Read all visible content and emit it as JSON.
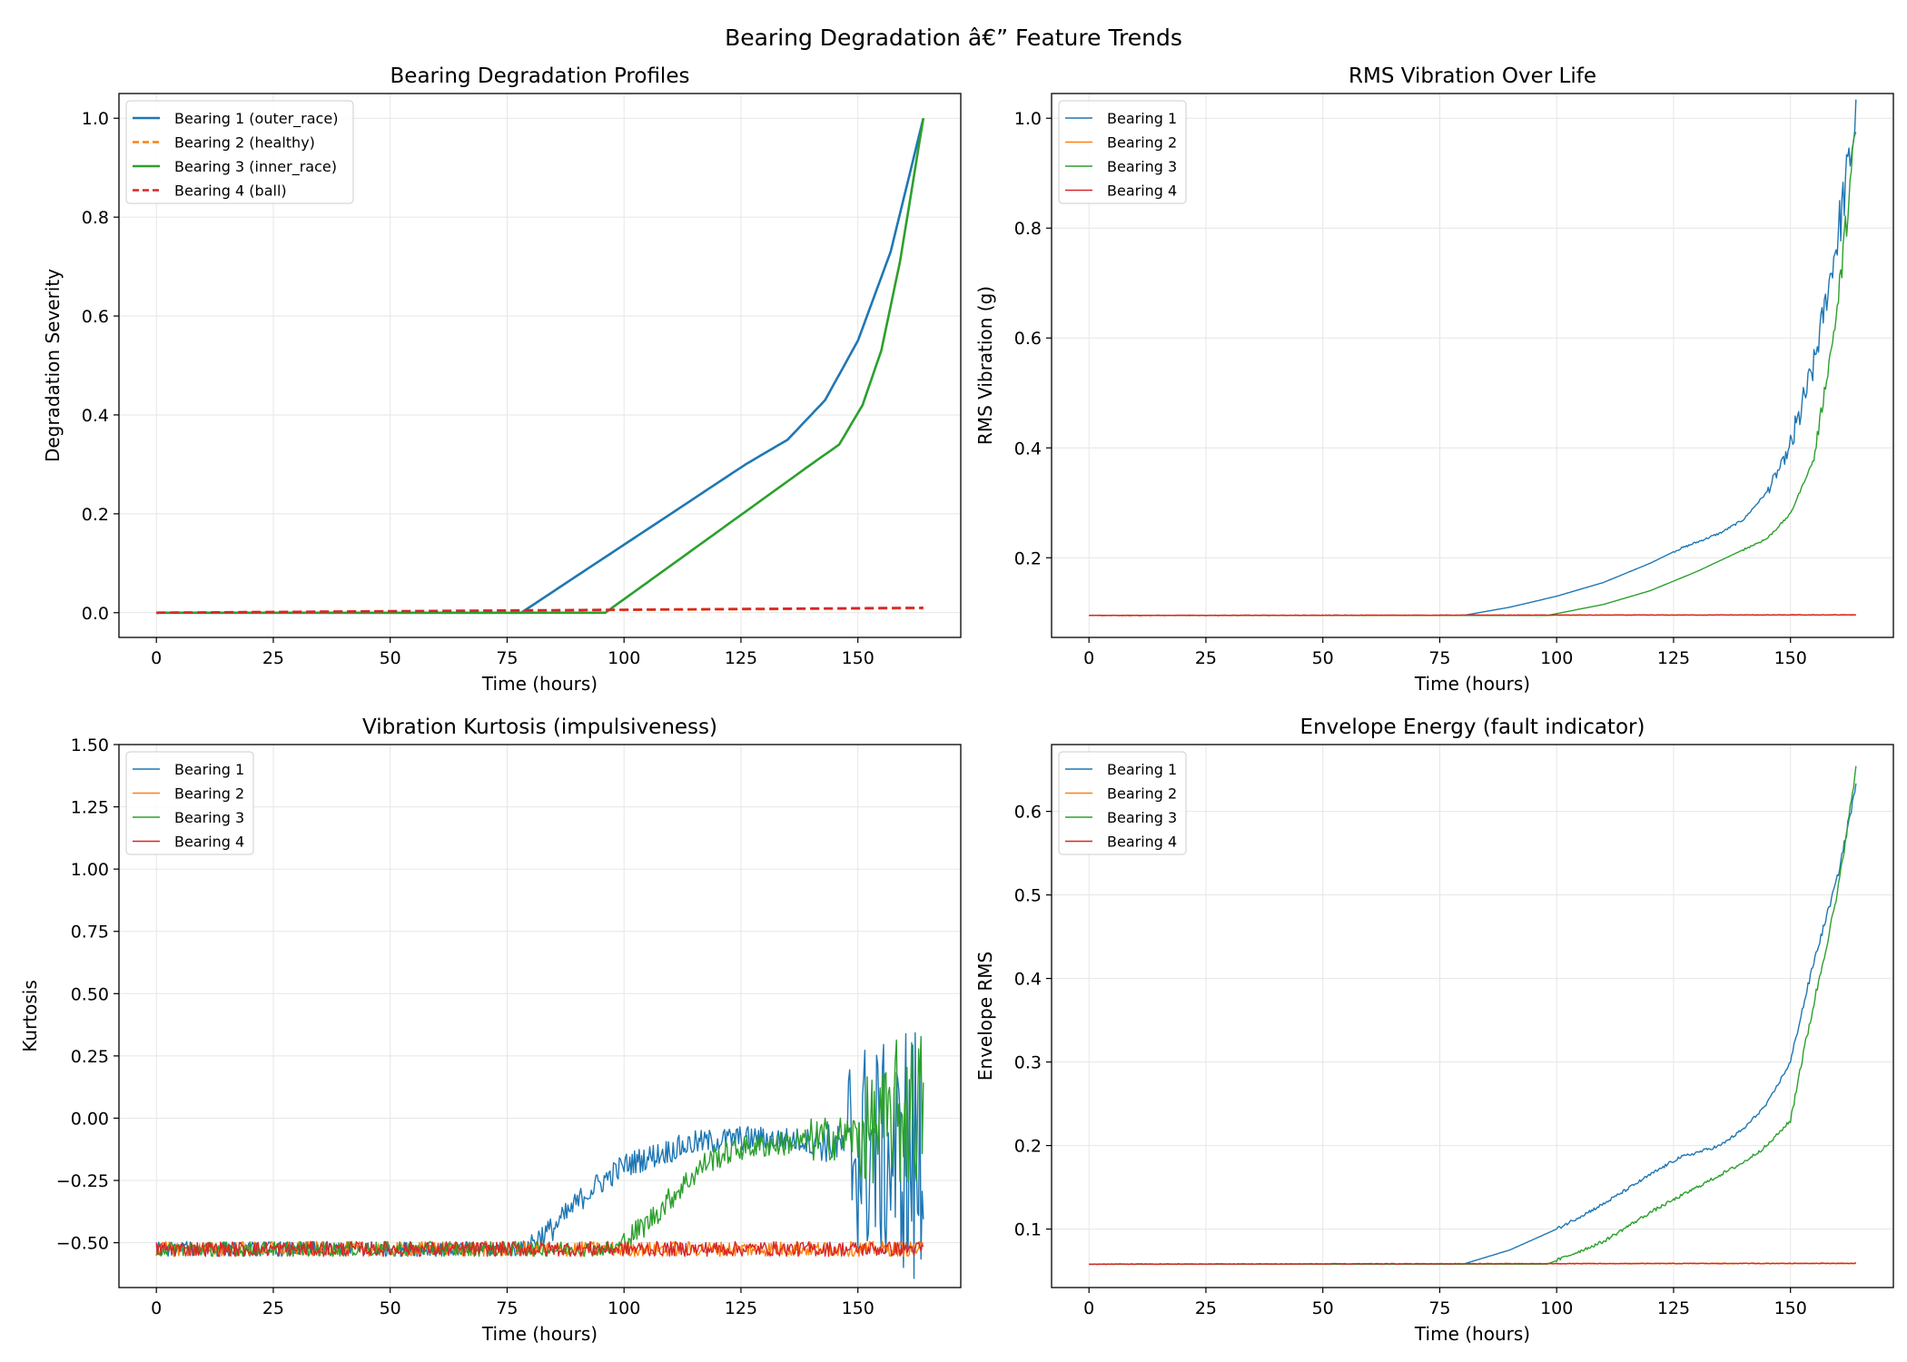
{
  "figure": {
    "suptitle": "Bearing Degradation â€” Feature Trends"
  },
  "colors": {
    "b1": "#1f77b4",
    "b2": "#ff7f0e",
    "b3": "#2ca02c",
    "b4": "#d62728"
  },
  "chart_data": [
    {
      "id": "degradation",
      "type": "line",
      "title": "Bearing Degradation Profiles",
      "xlabel": "Time (hours)",
      "ylabel": "Degradation Severity",
      "xlim": [
        -8,
        172
      ],
      "ylim": [
        -0.05,
        1.05
      ],
      "xticks": [
        0,
        25,
        50,
        75,
        100,
        125,
        150
      ],
      "yticks": [
        0.0,
        0.2,
        0.4,
        0.6,
        0.8,
        1.0
      ],
      "ytick_labels": [
        "0.0",
        "0.2",
        "0.4",
        "0.6",
        "0.8",
        "1.0"
      ],
      "grid": true,
      "legend": "upper-left",
      "series": [
        {
          "name": "Bearing 1 (outer_race)",
          "color": "#1f77b4",
          "dash": false,
          "width": 2.6,
          "x": [
            0,
            78,
            126,
            135,
            143,
            150,
            157,
            164
          ],
          "y": [
            0,
            0,
            0.3,
            0.35,
            0.43,
            0.55,
            0.73,
            1.0
          ]
        },
        {
          "name": "Bearing 2 (healthy)",
          "color": "#ff7f0e",
          "dash": true,
          "width": 2.6,
          "x": [
            0,
            164
          ],
          "y": [
            0,
            0.009
          ]
        },
        {
          "name": "Bearing 3 (inner_race)",
          "color": "#2ca02c",
          "dash": false,
          "width": 2.6,
          "x": [
            0,
            96,
            140,
            146,
            151,
            155,
            159,
            164
          ],
          "y": [
            0,
            0,
            0.3,
            0.34,
            0.42,
            0.53,
            0.71,
            1.0
          ]
        },
        {
          "name": "Bearing 4 (ball)",
          "color": "#d62728",
          "dash": true,
          "width": 2.6,
          "x": [
            0,
            164
          ],
          "y": [
            0,
            0.01
          ]
        }
      ]
    },
    {
      "id": "rms",
      "type": "line",
      "title": "RMS Vibration Over Life",
      "xlabel": "Time (hours)",
      "ylabel": "RMS Vibration (g)",
      "xlim": [
        -8,
        172
      ],
      "ylim": [
        0.055,
        1.045
      ],
      "xticks": [
        0,
        25,
        50,
        75,
        100,
        125,
        150
      ],
      "yticks": [
        0.2,
        0.4,
        0.6,
        0.8,
        1.0
      ],
      "ytick_labels": [
        "0.2",
        "0.4",
        "0.6",
        "0.8",
        "1.0"
      ],
      "grid": true,
      "legend": "upper-left",
      "series": [
        {
          "name": "Bearing 1",
          "color": "#1f77b4",
          "width": 1.4,
          "x": [
            0,
            80,
            90,
            100,
            110,
            120,
            126,
            135,
            140,
            145,
            150,
            155,
            160,
            164
          ],
          "y": [
            0.095,
            0.095,
            0.11,
            0.13,
            0.155,
            0.19,
            0.215,
            0.245,
            0.27,
            0.32,
            0.4,
            0.55,
            0.78,
            1.0
          ],
          "noise": [
            [
              125,
              0.002
            ],
            [
              145,
              0.01
            ],
            [
              150,
              0.03
            ],
            [
              160,
              0.05
            ]
          ]
        },
        {
          "name": "Bearing 2",
          "color": "#ff7f0e",
          "width": 1.4,
          "x": [
            0,
            164
          ],
          "y": [
            0.095,
            0.096
          ],
          "noise": [
            [
              0,
              0.0005
            ]
          ]
        },
        {
          "name": "Bearing 3",
          "color": "#2ca02c",
          "width": 1.4,
          "x": [
            0,
            98,
            110,
            120,
            130,
            140,
            145,
            150,
            155,
            160,
            164
          ],
          "y": [
            0.095,
            0.095,
            0.115,
            0.14,
            0.175,
            0.215,
            0.235,
            0.28,
            0.38,
            0.65,
            0.98
          ],
          "noise": [
            [
              140,
              0.002
            ],
            [
              155,
              0.012
            ],
            [
              160,
              0.03
            ]
          ]
        },
        {
          "name": "Bearing 4",
          "color": "#d62728",
          "width": 1.4,
          "x": [
            0,
            164
          ],
          "y": [
            0.095,
            0.096
          ],
          "noise": [
            [
              0,
              0.0005
            ]
          ]
        }
      ]
    },
    {
      "id": "kurtosis",
      "type": "line",
      "title": "Vibration Kurtosis (impulsiveness)",
      "xlabel": "Time (hours)",
      "ylabel": "Kurtosis",
      "xlim": [
        -8,
        172
      ],
      "ylim": [
        -0.68,
        1.5
      ],
      "xticks": [
        0,
        25,
        50,
        75,
        100,
        125,
        150
      ],
      "yticks": [
        -0.5,
        -0.25,
        0.0,
        0.25,
        0.5,
        0.75,
        1.0,
        1.25,
        1.5
      ],
      "ytick_labels": [
        "−0.50",
        "−0.25",
        "0.00",
        "0.25",
        "0.50",
        "0.75",
        "1.00",
        "1.25",
        "1.50"
      ],
      "grid": true,
      "legend": "upper-left",
      "series": [
        {
          "name": "Bearing 1",
          "color": "#1f77b4",
          "width": 1.4,
          "x": [
            0,
            78,
            85,
            92,
            100,
            108,
            115,
            125,
            140,
            150,
            164
          ],
          "y": [
            -0.525,
            -0.525,
            -0.44,
            -0.3,
            -0.19,
            -0.14,
            -0.1,
            -0.08,
            -0.09,
            -0.12,
            -0.2
          ],
          "noise": [
            [
              0,
              0.03
            ],
            [
              80,
              0.05
            ],
            [
              140,
              0.08
            ],
            [
              148,
              0.45
            ],
            [
              160,
              0.6
            ]
          ]
        },
        {
          "name": "Bearing 2",
          "color": "#ff7f0e",
          "width": 1.4,
          "x": [
            0,
            164
          ],
          "y": [
            -0.525,
            -0.525
          ],
          "noise": [
            [
              0,
              0.03
            ]
          ]
        },
        {
          "name": "Bearing 3",
          "color": "#2ca02c",
          "width": 1.4,
          "x": [
            0,
            98,
            105,
            112,
            118,
            125,
            140,
            150,
            164
          ],
          "y": [
            -0.525,
            -0.525,
            -0.42,
            -0.28,
            -0.17,
            -0.12,
            -0.09,
            -0.07,
            0.05
          ],
          "noise": [
            [
              0,
              0.03
            ],
            [
              100,
              0.05
            ],
            [
              140,
              0.09
            ],
            [
              150,
              0.22
            ],
            [
              158,
              0.32
            ]
          ]
        },
        {
          "name": "Bearing 4",
          "color": "#d62728",
          "width": 1.4,
          "x": [
            0,
            164
          ],
          "y": [
            -0.525,
            -0.525
          ],
          "noise": [
            [
              0,
              0.03
            ]
          ]
        }
      ]
    },
    {
      "id": "envelope",
      "type": "line",
      "title": "Envelope Energy (fault indicator)",
      "xlabel": "Time (hours)",
      "ylabel": "Envelope RMS",
      "xlim": [
        -8,
        172
      ],
      "ylim": [
        0.03,
        0.68
      ],
      "xticks": [
        0,
        25,
        50,
        75,
        100,
        125,
        150
      ],
      "yticks": [
        0.1,
        0.2,
        0.3,
        0.4,
        0.5,
        0.6
      ],
      "ytick_labels": [
        "0.1",
        "0.2",
        "0.3",
        "0.4",
        "0.5",
        "0.6"
      ],
      "grid": true,
      "legend": "upper-left",
      "series": [
        {
          "name": "Bearing 1",
          "color": "#1f77b4",
          "width": 1.4,
          "x": [
            0,
            80,
            90,
            100,
            110,
            120,
            126,
            135,
            140,
            145,
            150,
            152,
            155,
            160,
            164
          ],
          "y": [
            0.058,
            0.058,
            0.075,
            0.1,
            0.13,
            0.165,
            0.185,
            0.2,
            0.22,
            0.25,
            0.3,
            0.35,
            0.42,
            0.52,
            0.63
          ],
          "noise": [
            [
              100,
              0.002
            ],
            [
              150,
              0.004
            ]
          ]
        },
        {
          "name": "Bearing 2",
          "color": "#ff7f0e",
          "width": 1.4,
          "x": [
            0,
            164
          ],
          "y": [
            0.058,
            0.059
          ],
          "noise": [
            [
              0,
              0.0004
            ]
          ]
        },
        {
          "name": "Bearing 3",
          "color": "#2ca02c",
          "width": 1.4,
          "x": [
            0,
            98,
            110,
            120,
            130,
            140,
            145,
            150,
            152,
            155,
            160,
            164
          ],
          "y": [
            0.058,
            0.058,
            0.085,
            0.12,
            0.15,
            0.18,
            0.2,
            0.23,
            0.29,
            0.37,
            0.5,
            0.65
          ],
          "noise": [
            [
              100,
              0.002
            ],
            [
              150,
              0.005
            ]
          ]
        },
        {
          "name": "Bearing 4",
          "color": "#d62728",
          "width": 1.4,
          "x": [
            0,
            164
          ],
          "y": [
            0.058,
            0.059
          ],
          "noise": [
            [
              0,
              0.0004
            ]
          ]
        }
      ]
    }
  ]
}
